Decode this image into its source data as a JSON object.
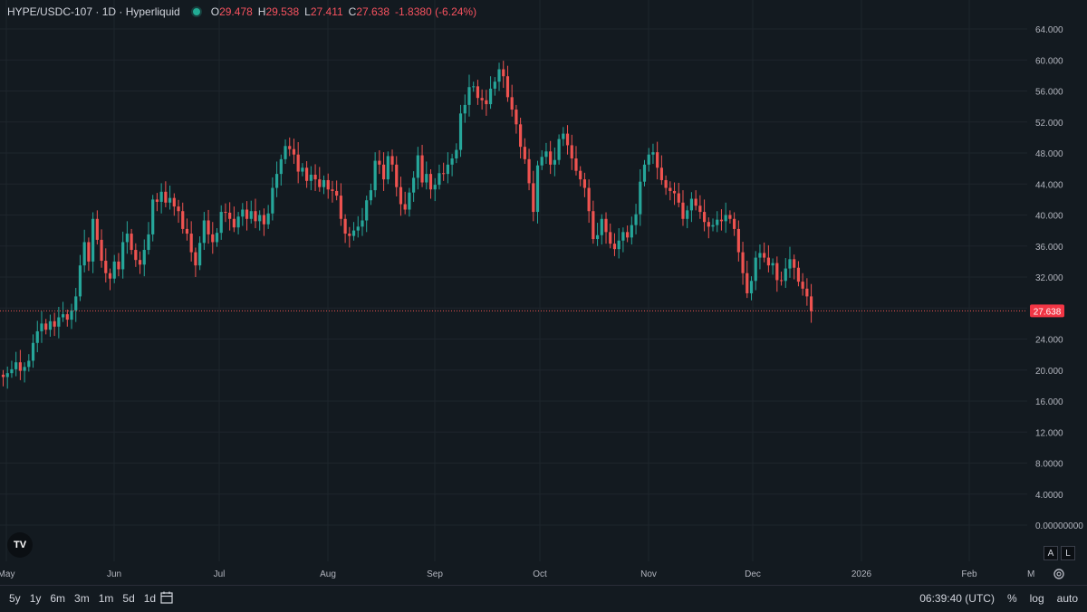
{
  "header": {
    "symbol": "HYPE/USDC-107 · 1D · Hyperliquid",
    "ohlc": [
      {
        "k": "O",
        "v": "29.478"
      },
      {
        "k": "H",
        "v": "29.538"
      },
      {
        "k": "L",
        "v": "27.411"
      },
      {
        "k": "C",
        "v": "27.638"
      },
      {
        "k": "",
        "v": "-1.8380 (-6.24%)"
      }
    ]
  },
  "chart_data": {
    "type": "candlestick",
    "y_ticks": [
      "64.000",
      "60.000",
      "56.000",
      "52.000",
      "48.000",
      "44.000",
      "40.000",
      "36.000",
      "32.000",
      "28.000",
      "24.000",
      "20.000",
      "16.000",
      "12.000",
      "8.0000",
      "4.0000",
      "0.00000000"
    ],
    "y_range": [
      0,
      64
    ],
    "x_labels": [
      "May",
      "Jun",
      "Jul",
      "Aug",
      "Sep",
      "Oct",
      "Nov",
      "Dec",
      "2026",
      "Feb",
      "M"
    ],
    "last_price": "27.638",
    "grid": true,
    "colors": {
      "up": "#26a69a",
      "down": "#ef5350",
      "grid": "#1e252c",
      "label_bg": "#f23645"
    },
    "closes": [
      19.1,
      19.6,
      20.1,
      21,
      19.9,
      20.4,
      21.2,
      23.5,
      25,
      26,
      25.2,
      26.3,
      25.6,
      26.8,
      27.2,
      26.5,
      27.7,
      29.5,
      33.5,
      36.5,
      34,
      39.5,
      36.8,
      34.1,
      32.5,
      31.8,
      34,
      33,
      36.5,
      37.6,
      35.5,
      34.2,
      33.6,
      35.5,
      37.5,
      42,
      41.7,
      43,
      41.6,
      42.2,
      41.1,
      40.5,
      38.2,
      37.6,
      35.2,
      33.5,
      36.4,
      39.3,
      37.5,
      36.5,
      37.7,
      40.4,
      40.3,
      39.5,
      38.4,
      39.8,
      40.7,
      39.5,
      40.5,
      39.2,
      40,
      38.8,
      40.2,
      43.5,
      45.3,
      47.2,
      48.9,
      48.5,
      47.8,
      45.6,
      46.1,
      44.4,
      45.2,
      44.6,
      43.6,
      44.5,
      43.3,
      43.1,
      42.5,
      39.5,
      37.6,
      37.3,
      38,
      38.5,
      39.3,
      41.9,
      43.2,
      47,
      46.5,
      44.6,
      47.6,
      46.5,
      43.6,
      41.4,
      40.7,
      42.9,
      44.8,
      47.7,
      44.2,
      45.3,
      43.3,
      43.9,
      45.4,
      45.3,
      46.5,
      47.3,
      48.4,
      53.1,
      54.2,
      56.5,
      56.6,
      55.1,
      54.8,
      54.3,
      56.3,
      57.2,
      58.8,
      57.9,
      55.2,
      53.6,
      51.7,
      48.8,
      47.2,
      44.1,
      40.4,
      46.4,
      47.5,
      48.2,
      46.5,
      47.1,
      49.8,
      50.5,
      49,
      47.3,
      45.7,
      44.6,
      43.5,
      40.5,
      36.9,
      37.4,
      39.5,
      37.8,
      36.3,
      35.6,
      36.7,
      37.8,
      37.1,
      38.7,
      40.1,
      44.3,
      46.5,
      47.8,
      48.1,
      46.1,
      44.5,
      43.5,
      43.1,
      42.8,
      41.6,
      39.5,
      40.6,
      42.1,
      41.2,
      40.4,
      39.1,
      38.5,
      38.7,
      39.4,
      39.2,
      40,
      39.5,
      38.2,
      35.2,
      32.5,
      29.9,
      31.5,
      34.5,
      35.1,
      34.5,
      33.5,
      33.8,
      31.6,
      31.5,
      33.1,
      34.3,
      33.2,
      31.4,
      30.5,
      29.5,
      27.6
    ]
  },
  "bottom": {
    "ranges": [
      "5y",
      "1y",
      "6m",
      "3m",
      "1m",
      "5d",
      "1d"
    ],
    "clock": "06:39:40 (UTC)",
    "percent": "%",
    "log": "log",
    "auto": "auto",
    "a_btn": "A",
    "l_btn": "L"
  },
  "logo": "TV"
}
